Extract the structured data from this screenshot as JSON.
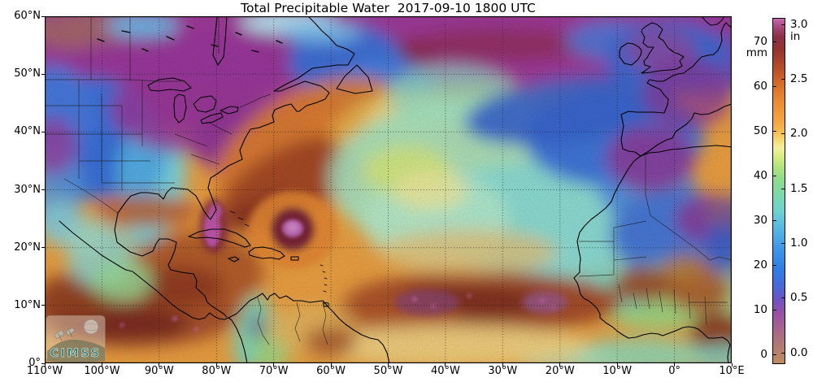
{
  "title": "Total Precipitable Water  2017-09-10 1800 UTC",
  "map": {
    "x_tick_labels": [
      "110°W",
      "100°W",
      "90°W",
      "80°W",
      "70°W",
      "60°W",
      "50°W",
      "40°W",
      "30°W",
      "20°W",
      "10°W",
      "0°",
      "10°E"
    ],
    "y_tick_labels": [
      "0°",
      "10°N",
      "20°N",
      "30°N",
      "40°N",
      "50°N",
      "60°N"
    ],
    "watermark": "CIMSS"
  },
  "colorbar": {
    "unit_left": "mm",
    "unit_right": "in",
    "mm_ticks": [
      0,
      10,
      20,
      30,
      40,
      50,
      60,
      70
    ],
    "in_ticks": [
      "0.0",
      "0.5",
      "1.0",
      "1.5",
      "2.0",
      "2.5",
      "3.0"
    ],
    "max_mm": 76.2,
    "max_in": 3.0,
    "gradient_stops": [
      [
        0.0,
        "#bf8a5f"
      ],
      [
        0.05,
        "#b27a72"
      ],
      [
        0.1,
        "#a7648e"
      ],
      [
        0.145,
        "#9750a5"
      ],
      [
        0.18,
        "#7350c0"
      ],
      [
        0.22,
        "#4b66d8"
      ],
      [
        0.27,
        "#2f7ce6"
      ],
      [
        0.33,
        "#3b96e8"
      ],
      [
        0.39,
        "#55b7e4"
      ],
      [
        0.44,
        "#6cd2d2"
      ],
      [
        0.49,
        "#7cd9ab"
      ],
      [
        0.53,
        "#8cdc8b"
      ],
      [
        0.57,
        "#b2e47e"
      ],
      [
        0.6,
        "#d8ec7f"
      ],
      [
        0.625,
        "#f4f0a0"
      ],
      [
        0.645,
        "#f8dc74"
      ],
      [
        0.67,
        "#f7bd52"
      ],
      [
        0.7,
        "#f4a63f"
      ],
      [
        0.76,
        "#ea8b31"
      ],
      [
        0.81,
        "#d86c29"
      ],
      [
        0.86,
        "#b54b28"
      ],
      [
        0.91,
        "#94332f"
      ],
      [
        0.945,
        "#8d2f44"
      ],
      [
        0.97,
        "#a23f72"
      ],
      [
        1.0,
        "#c767ab"
      ]
    ]
  }
}
